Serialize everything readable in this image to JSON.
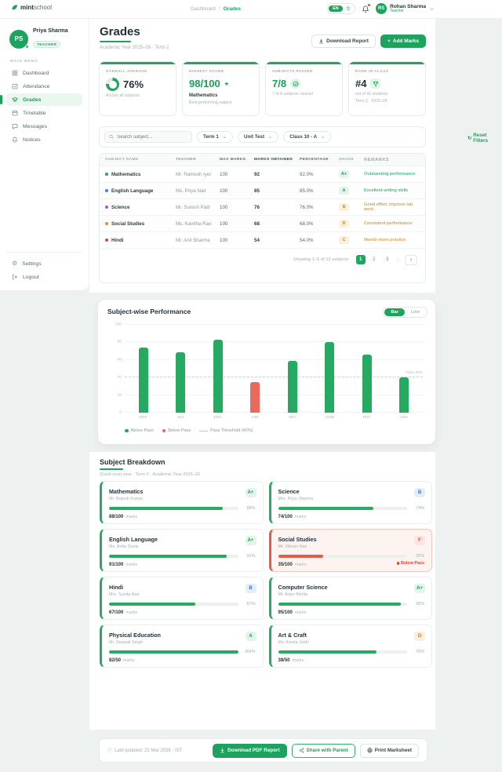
{
  "navbar": {
    "logo_mint": "mint",
    "logo_school": "school",
    "breadcrumb": {
      "dashboard": "Dashboard",
      "separator": "/",
      "current": "Grades"
    },
    "lang": {
      "en": "EN",
      "hi": "हि"
    },
    "user": {
      "initials": "RS",
      "name": "Rohan Sharma",
      "role": "Teacher"
    }
  },
  "sidebar": {
    "profile": {
      "initials": "PS",
      "name": "Priya Sharma",
      "role_badge": "TEACHER"
    },
    "section_label": "MAIN MENU",
    "items": [
      {
        "label": "Dashboard"
      },
      {
        "label": "Attendance"
      },
      {
        "label": "Grades"
      },
      {
        "label": "Timetable"
      },
      {
        "label": "Messages"
      },
      {
        "label": "Notices"
      }
    ],
    "footer_items": [
      {
        "label": "Settings"
      },
      {
        "label": "Logout"
      }
    ]
  },
  "header": {
    "title": "Grades",
    "subtitle": "Academic Year 2025–26 · Term 2",
    "download_report_label": "Download Report",
    "add_marks_label": "Add Marks"
  },
  "stats": {
    "cards": [
      {
        "label": "OVERALL AVERAGE",
        "value": "76%",
        "ring_pct": 76,
        "sub": "Across all subjects"
      },
      {
        "label": "HIGHEST SCORE",
        "value": "98/100",
        "subject": "Mathematics",
        "sub": "Best performing subject"
      },
      {
        "label": "SUBJECTS PASSED",
        "value": "7/8",
        "sub": "7 of 8 subjects cleared"
      },
      {
        "label": "RANK IN CLASS",
        "value": "#4",
        "sub": "out of 42 students",
        "sub2": "Term 2 · 2025–26"
      }
    ]
  },
  "filters": {
    "search_placeholder": "Search subject...",
    "term": "Term 1",
    "exam": "Unit Test",
    "class": "Class 10 - A",
    "reset_label": "Reset Filters"
  },
  "table": {
    "columns": [
      "SUBJECT NAME",
      "TEACHER",
      "MAX MARKS",
      "MARKS OBTAINED",
      "PERCENTAGE",
      "GRADE",
      "REMARKS"
    ],
    "rows": [
      {
        "subject": "Mathematics",
        "teacher": "Mr. Ramesh Iyer",
        "max": "100",
        "obtained": "92",
        "pct": "92.0%",
        "grade": "A+",
        "remark": "Outstanding performance",
        "dot_class": "dot-green",
        "grade_class": "g-green",
        "remark_class": "remark-green"
      },
      {
        "subject": "English Language",
        "teacher": "Ms. Priya Nair",
        "max": "100",
        "obtained": "85",
        "pct": "85.0%",
        "grade": "A",
        "remark": "Excellent writing skills",
        "dot_class": "dot-blue",
        "grade_class": "g-green",
        "remark_class": "remark-green"
      },
      {
        "subject": "Science",
        "teacher": "Mr. Suresh Patil",
        "max": "100",
        "obtained": "76",
        "pct": "76.0%",
        "grade": "B",
        "remark": "Good effort, improve lab work",
        "dot_class": "dot-purple",
        "grade_class": "g-amber",
        "remark_class": "remark-amber"
      },
      {
        "subject": "Social Studies",
        "teacher": "Ms. Kavitha Rao",
        "max": "100",
        "obtained": "68",
        "pct": "68.0%",
        "grade": "B",
        "remark": "Consistent performance",
        "dot_class": "dot-orange",
        "grade_class": "g-amber",
        "remark_class": "remark-amber"
      },
      {
        "subject": "Hindi",
        "teacher": "Mr. Anil Sharma",
        "max": "100",
        "obtained": "54",
        "pct": "54.0%",
        "grade": "C",
        "remark": "Needs more practice",
        "dot_class": "dot-red",
        "grade_class": "g-amber",
        "remark_class": "remark-amber"
      }
    ],
    "pagination": {
      "summary": "Showing 1–5 of 12 subjects",
      "pages": [
        "1",
        "2",
        "3"
      ],
      "prev": "‹",
      "next": "›"
    }
  },
  "chart_data": {
    "type": "bar",
    "title": "Subject-wise Performance",
    "toggle": {
      "bar": "Bar",
      "line": "Line"
    },
    "categories": [
      "MAT",
      "SCI",
      "ENG",
      "HIN",
      "SST",
      "COM",
      "PHY",
      "CRA"
    ],
    "values": [
      74,
      69,
      83,
      35,
      59,
      80,
      66,
      40
    ],
    "ylim": [
      0,
      100
    ],
    "yticks": [
      0,
      20,
      40,
      60,
      80,
      100
    ],
    "threshold": 40,
    "threshold_line_label": "Pass 40%",
    "legend": {
      "above": "Above Pass",
      "below": "Below Pass",
      "threshold": "Pass Threshold (40%)"
    },
    "colors": {
      "above": "#26a960",
      "below": "#e9695a"
    }
  },
  "breakdown": {
    "title": "Subject Breakdown",
    "subtitle": "Quick-scan view · Term 2 · Academic Year 2025–26",
    "marks_suffix": "marks",
    "cards": [
      {
        "name": "Mathematics",
        "teacher": "Mr. Rajesh Kumar",
        "grade": "A+",
        "grade_class": "g-green",
        "bar_class": "fill-green",
        "pct": 88,
        "pct_label": "88%",
        "marks": "88/100"
      },
      {
        "name": "Science",
        "teacher": "Mrs. Priya Sharma",
        "grade": "B",
        "grade_class": "g-blue",
        "bar_class": "fill-green",
        "pct": 74,
        "pct_label": "74%",
        "marks": "74/100"
      },
      {
        "name": "English Language",
        "teacher": "Ms. Anita Desai",
        "grade": "A+",
        "grade_class": "g-green",
        "bar_class": "fill-green",
        "pct": 91,
        "pct_label": "91%",
        "marks": "91/100"
      },
      {
        "name": "Social Studies",
        "teacher": "Mr. Vikram Nair",
        "grade": "F",
        "grade_class": "g-red",
        "bar_class": "fill-red",
        "pct": 35,
        "pct_label": "35%",
        "marks": "35/100",
        "card_class": "card-danger",
        "below_pass": "Below Pass"
      },
      {
        "name": "Hindi",
        "teacher": "Mrs. Sunita Rao",
        "grade": "B",
        "grade_class": "g-blue",
        "bar_class": "fill-green",
        "pct": 67,
        "pct_label": "67%",
        "marks": "67/100"
      },
      {
        "name": "Computer Science",
        "teacher": "Mr. Arjun Mehta",
        "grade": "A+",
        "grade_class": "g-green",
        "bar_class": "fill-green",
        "pct": 95,
        "pct_label": "95%",
        "marks": "95/100"
      },
      {
        "name": "Physical Education",
        "teacher": "Mr. Deepak Singh",
        "grade": "A",
        "grade_class": "g-green",
        "bar_class": "fill-green",
        "pct": 164,
        "pct_label": "164%",
        "marks": "82/50"
      },
      {
        "name": "Art & Craft",
        "teacher": "Ms. Kavita Joshi",
        "grade": "D",
        "grade_class": "g-orange",
        "bar_class": "fill-green",
        "pct": 76,
        "pct_label": "76%",
        "marks": "38/50"
      }
    ]
  },
  "footer": {
    "updated": "Last updated: 22 Mar 2026 · IST",
    "info_icon": "ⓘ",
    "pdf_label": "Download PDF Report",
    "share_label": "Share with Parent",
    "print_label": "Print Marksheet"
  },
  "icons": {
    "star": "★",
    "refresh": "↻",
    "plus": "+",
    "gear": "⚙",
    "chevron": "⌄"
  }
}
